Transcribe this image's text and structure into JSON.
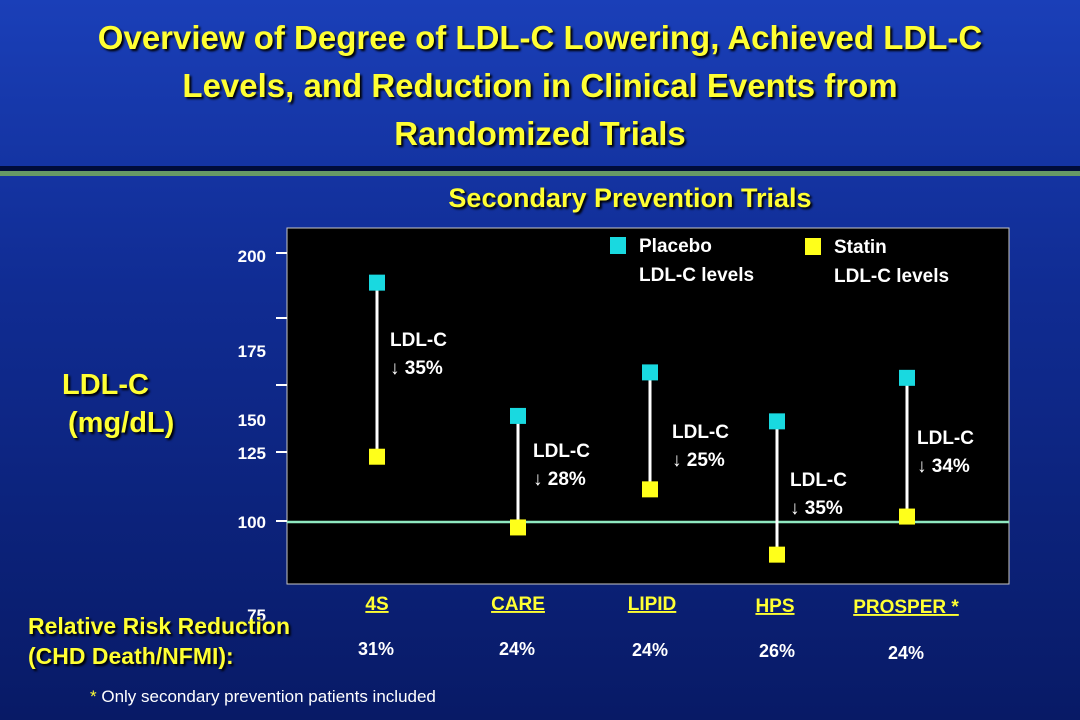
{
  "title_lines": [
    "Overview of Degree of LDL-C Lowering, Achieved LDL-C",
    "Levels, and Reduction in Clinical Events from",
    "Randomized Trials"
  ],
  "subtitle": "Secondary Prevention Trials",
  "ylabel_line1": "LDL-C",
  "ylabel_line2": "(mg/dL)",
  "rrr_line1": "Relative Risk Reduction",
  "rrr_line2": "(CHD Death/NFMI):",
  "footnote_star": "*",
  "footnote_text": " Only secondary prevention patients included",
  "colors": {
    "placebo": "#19d9e0",
    "statin": "#ffff1a",
    "reference_line": "#8fe8c0",
    "title": "#ffff33",
    "plot_bg": "#000000"
  },
  "chart_data": {
    "type": "range",
    "yticks": [
      "200",
      "175",
      "150",
      "125",
      "100",
      "75"
    ],
    "reference_line": 100,
    "legend": [
      {
        "series": "placebo",
        "line1": "Placebo",
        "line2": "LDL-C levels"
      },
      {
        "series": "statin",
        "line1": "Statin",
        "line2": "LDL-C levels"
      }
    ],
    "trials": [
      {
        "name": "4S",
        "placebo": 188,
        "statin": 124,
        "ann1": "LDL-C",
        "ann2": "35%",
        "rrr": "31%"
      },
      {
        "name": "CARE",
        "placebo": 139,
        "statin": 98,
        "ann1": "LDL-C",
        "ann2": "28%",
        "rrr": "24%"
      },
      {
        "name": "LIPID",
        "placebo": 155,
        "statin": 112,
        "ann1": "LDL-C",
        "ann2": "25%",
        "rrr": "24%"
      },
      {
        "name": "HPS",
        "placebo": 137,
        "statin": 88,
        "ann1": "LDL-C",
        "ann2": "35%",
        "rrr": "26%"
      },
      {
        "name": "PROSPER *",
        "placebo": 153,
        "statin": 102,
        "ann1": "LDL-C",
        "ann2": "34%",
        "rrr": "24%"
      }
    ]
  }
}
